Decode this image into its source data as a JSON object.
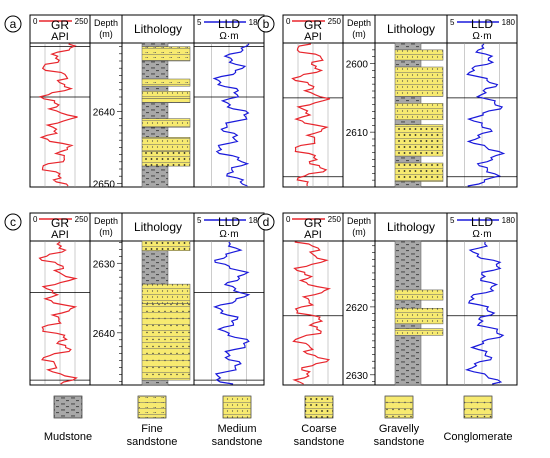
{
  "figure": {
    "panels": [
      {
        "letter": "a",
        "gr_title": "GR",
        "gr_unit": "API",
        "gr_min": "0",
        "gr_max": "250",
        "depth_title": "Depth",
        "depth_unit": "(m)",
        "litho_title": "Lithology",
        "lld_title": "LLD",
        "lld_unit": "Ω·m",
        "lld_min": "5",
        "lld_max": "180",
        "depth_range": [
          2630.5,
          2650.5
        ],
        "depth_ticks": [
          {
            "depth": 2640,
            "label": "2640"
          },
          {
            "depth": 2650,
            "label": "2650"
          }
        ],
        "markers": [
          2631.0,
          2638.0
        ],
        "litho": [
          {
            "top": 2630.5,
            "base": 2631.0,
            "type": "mudstone"
          },
          {
            "top": 2631.0,
            "base": 2633.0,
            "type": "fine"
          },
          {
            "top": 2633.0,
            "base": 2635.5,
            "type": "mudstone"
          },
          {
            "top": 2635.5,
            "base": 2636.5,
            "type": "fine"
          },
          {
            "top": 2636.5,
            "base": 2637.2,
            "type": "mudstone"
          },
          {
            "top": 2637.2,
            "base": 2638.2,
            "type": "medium"
          },
          {
            "top": 2638.2,
            "base": 2638.8,
            "type": "fine"
          },
          {
            "top": 2638.8,
            "base": 2641.0,
            "type": "mudstone"
          },
          {
            "top": 2641.0,
            "base": 2642.2,
            "type": "medium"
          },
          {
            "top": 2642.2,
            "base": 2643.6,
            "type": "mudstone"
          },
          {
            "top": 2643.6,
            "base": 2645.6,
            "type": "medium"
          },
          {
            "top": 2645.6,
            "base": 2647.6,
            "type": "coarse"
          },
          {
            "top": 2647.6,
            "base": 2650.5,
            "type": "mudstone"
          }
        ]
      },
      {
        "letter": "b",
        "gr_title": "GR",
        "gr_unit": "API",
        "gr_min": "0",
        "gr_max": "250",
        "depth_title": "Depth",
        "depth_unit": "(m)",
        "litho_title": "Lithology",
        "lld_title": "LLD",
        "lld_unit": "Ω·m",
        "lld_min": "5",
        "lld_max": "180",
        "depth_range": [
          2597.0,
          2618.0
        ],
        "depth_ticks": [
          {
            "depth": 2600,
            "label": "2600"
          },
          {
            "depth": 2610,
            "label": "2610"
          }
        ],
        "markers": [
          2605.0,
          2616.5
        ],
        "litho": [
          {
            "top": 2597.0,
            "base": 2598.0,
            "type": "mudstone"
          },
          {
            "top": 2598.0,
            "base": 2599.5,
            "type": "medium"
          },
          {
            "top": 2599.5,
            "base": 2600.5,
            "type": "mudstone"
          },
          {
            "top": 2600.5,
            "base": 2604.8,
            "type": "medium"
          },
          {
            "top": 2604.8,
            "base": 2605.8,
            "type": "mudstone"
          },
          {
            "top": 2605.8,
            "base": 2608.2,
            "type": "medium"
          },
          {
            "top": 2608.2,
            "base": 2608.9,
            "type": "mudstone"
          },
          {
            "top": 2608.9,
            "base": 2613.5,
            "type": "coarse"
          },
          {
            "top": 2613.5,
            "base": 2614.5,
            "type": "mudstone"
          },
          {
            "top": 2614.5,
            "base": 2617.2,
            "type": "coarse"
          },
          {
            "top": 2617.2,
            "base": 2618.0,
            "type": "mudstone"
          }
        ]
      },
      {
        "letter": "c",
        "gr_title": "GR",
        "gr_unit": "API",
        "gr_min": "0",
        "gr_max": "250",
        "depth_title": "Depth",
        "depth_unit": "(m)",
        "litho_title": "Lithology",
        "lld_title": "LLD",
        "lld_unit": "Ω·m",
        "lld_min": "5",
        "lld_max": "180",
        "depth_range": [
          2626.8,
          2647.5
        ],
        "depth_ticks": [
          {
            "depth": 2630,
            "label": "2630"
          },
          {
            "depth": 2640,
            "label": "2640"
          }
        ],
        "markers": [
          2634.2,
          2646.8
        ],
        "litho": [
          {
            "top": 2626.8,
            "base": 2628.2,
            "type": "coarse"
          },
          {
            "top": 2628.2,
            "base": 2633.0,
            "type": "mudstone"
          },
          {
            "top": 2633.0,
            "base": 2635.8,
            "type": "medium"
          },
          {
            "top": 2635.8,
            "base": 2646.8,
            "type": "gravelly"
          },
          {
            "top": 2646.8,
            "base": 2647.5,
            "type": "mudstone"
          }
        ]
      },
      {
        "letter": "d",
        "gr_title": "GR",
        "gr_unit": "API",
        "gr_min": "0",
        "gr_max": "250",
        "depth_title": "Depth",
        "depth_unit": "(m)",
        "litho_title": "Lithology",
        "lld_title": "LLD",
        "lld_unit": "Ω·m",
        "lld_min": "5",
        "lld_max": "180",
        "depth_range": [
          2610.3,
          2631.5
        ],
        "depth_ticks": [
          {
            "depth": 2620,
            "label": "2620"
          },
          {
            "depth": 2630,
            "label": "2630"
          }
        ],
        "markers": [
          2621.3
        ],
        "litho": [
          {
            "top": 2610.3,
            "base": 2617.5,
            "type": "mudstone"
          },
          {
            "top": 2617.5,
            "base": 2619.0,
            "type": "medium"
          },
          {
            "top": 2619.0,
            "base": 2620.2,
            "type": "mudstone"
          },
          {
            "top": 2620.2,
            "base": 2622.5,
            "type": "medium"
          },
          {
            "top": 2622.5,
            "base": 2623.2,
            "type": "mudstone"
          },
          {
            "top": 2623.2,
            "base": 2624.2,
            "type": "medium"
          },
          {
            "top": 2624.2,
            "base": 2631.5,
            "type": "mudstone"
          }
        ]
      }
    ],
    "legend": [
      {
        "type": "mudstone",
        "label_lines": [
          "Mudstone"
        ]
      },
      {
        "type": "fine",
        "label_lines": [
          "Fine",
          "sandstone"
        ]
      },
      {
        "type": "medium",
        "label_lines": [
          "Medium",
          "sandstone"
        ]
      },
      {
        "type": "coarse",
        "label_lines": [
          "Coarse",
          "sandstone"
        ]
      },
      {
        "type": "gravelly",
        "label_lines": [
          "Gravelly",
          "sandstone"
        ]
      },
      {
        "type": "conglomerate",
        "label_lines": [
          "Conglomerate"
        ]
      }
    ],
    "colors": {
      "gr_curve": "#e8262d",
      "lld_curve": "#1a1adb",
      "sand_fill": "#f7ea70",
      "mud_fill": "#a8a8a8",
      "frame": "#000000"
    },
    "panel_letter_circle": "circle",
    "icons": {
      "panel_letter": "circled-letter"
    }
  }
}
